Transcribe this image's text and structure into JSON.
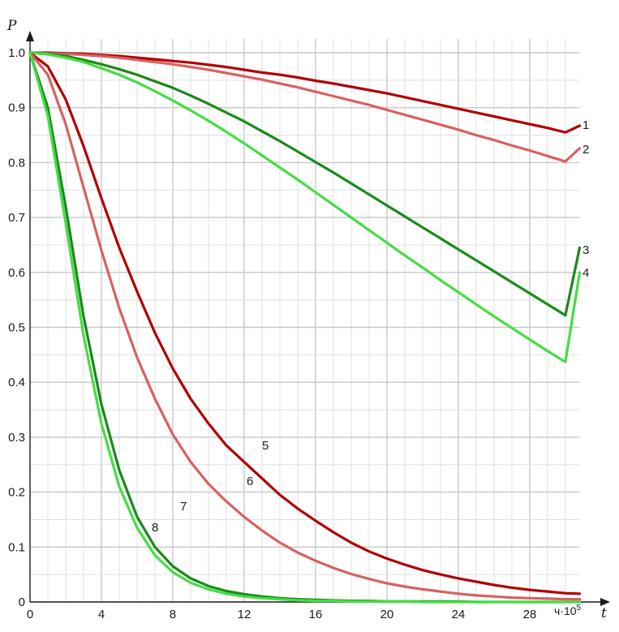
{
  "chart_data": {
    "type": "line",
    "xlabel": "t",
    "ylabel": "P",
    "x_unit": "ч·10",
    "x_unit_exp": "5",
    "xlim": [
      0,
      31
    ],
    "ylim": [
      0,
      1.0
    ],
    "x_ticks": [
      0,
      4,
      8,
      12,
      16,
      20,
      24,
      28
    ],
    "x_tick_labels": [
      "0",
      "4",
      "8",
      "12",
      "16",
      "20",
      "24",
      "28"
    ],
    "y_ticks": [
      0,
      0.1,
      0.2,
      0.3,
      0.4,
      0.5,
      0.6,
      0.7,
      0.8,
      0.9,
      1.0
    ],
    "y_tick_labels": [
      "0",
      "0.1",
      "0.2",
      "0.3",
      "0.4",
      "0.5",
      "0.6",
      "0.7",
      "0.8",
      "0.9",
      "1.0"
    ],
    "grid": true,
    "x": [
      0,
      1,
      2,
      3,
      4,
      5,
      6,
      7,
      8,
      9,
      10,
      11,
      12,
      13,
      14,
      15,
      16,
      17,
      18,
      19,
      20,
      21,
      22,
      23,
      24,
      25,
      26,
      27,
      28,
      29,
      30,
      30.8
    ],
    "series": [
      {
        "name": "1",
        "color": "#b00000",
        "values": [
          1.0,
          1.0,
          0.999,
          0.998,
          0.996,
          0.994,
          0.991,
          0.988,
          0.985,
          0.982,
          0.978,
          0.974,
          0.969,
          0.964,
          0.96,
          0.955,
          0.949,
          0.944,
          0.938,
          0.932,
          0.926,
          0.919,
          0.912,
          0.905,
          0.898,
          0.891,
          0.884,
          0.877,
          0.87,
          0.863,
          0.855,
          0.867
        ]
      },
      {
        "name": "2",
        "color": "#d96060",
        "values": [
          1.0,
          0.999,
          0.998,
          0.996,
          0.994,
          0.991,
          0.987,
          0.983,
          0.979,
          0.974,
          0.969,
          0.963,
          0.957,
          0.951,
          0.944,
          0.937,
          0.929,
          0.921,
          0.913,
          0.905,
          0.896,
          0.887,
          0.878,
          0.869,
          0.86,
          0.85,
          0.841,
          0.831,
          0.822,
          0.812,
          0.802,
          0.826
        ]
      },
      {
        "name": "3",
        "color": "#1a8a1a",
        "values": [
          1.0,
          0.998,
          0.994,
          0.987,
          0.979,
          0.97,
          0.96,
          0.948,
          0.936,
          0.922,
          0.907,
          0.891,
          0.875,
          0.857,
          0.839,
          0.82,
          0.801,
          0.782,
          0.762,
          0.742,
          0.722,
          0.702,
          0.682,
          0.662,
          0.642,
          0.622,
          0.602,
          0.582,
          0.562,
          0.542,
          0.522,
          0.645
        ]
      },
      {
        "name": "4",
        "color": "#44dd44",
        "values": [
          1.0,
          0.997,
          0.991,
          0.983,
          0.972,
          0.96,
          0.946,
          0.93,
          0.913,
          0.895,
          0.876,
          0.856,
          0.835,
          0.813,
          0.791,
          0.769,
          0.746,
          0.723,
          0.7,
          0.677,
          0.654,
          0.631,
          0.609,
          0.586,
          0.564,
          0.542,
          0.52,
          0.499,
          0.478,
          0.457,
          0.437,
          0.6
        ]
      },
      {
        "name": "5",
        "color": "#b00000",
        "values": [
          1.0,
          0.975,
          0.915,
          0.83,
          0.735,
          0.645,
          0.565,
          0.49,
          0.425,
          0.37,
          0.325,
          0.285,
          0.255,
          0.225,
          0.195,
          0.17,
          0.148,
          0.127,
          0.108,
          0.092,
          0.079,
          0.068,
          0.058,
          0.05,
          0.043,
          0.037,
          0.031,
          0.026,
          0.022,
          0.019,
          0.016,
          0.015
        ]
      },
      {
        "name": "6",
        "color": "#d96060",
        "values": [
          1.0,
          0.96,
          0.87,
          0.755,
          0.64,
          0.535,
          0.445,
          0.37,
          0.305,
          0.255,
          0.215,
          0.183,
          0.155,
          0.13,
          0.108,
          0.09,
          0.075,
          0.062,
          0.051,
          0.042,
          0.034,
          0.028,
          0.023,
          0.019,
          0.015,
          0.012,
          0.01,
          0.008,
          0.007,
          0.006,
          0.005,
          0.005
        ]
      },
      {
        "name": "7",
        "color": "#1a8a1a",
        "values": [
          1.0,
          0.9,
          0.72,
          0.52,
          0.36,
          0.24,
          0.155,
          0.1,
          0.065,
          0.043,
          0.029,
          0.02,
          0.014,
          0.01,
          0.007,
          0.005,
          0.004,
          0.003,
          0.002,
          0.002,
          0.001,
          0.001,
          0.001,
          0.001,
          0.001,
          0.0,
          0.0,
          0.0,
          0.0,
          0.0,
          0.0,
          0.0
        ]
      },
      {
        "name": "8",
        "color": "#44dd44",
        "values": [
          1.0,
          0.885,
          0.69,
          0.485,
          0.325,
          0.21,
          0.135,
          0.085,
          0.054,
          0.035,
          0.023,
          0.015,
          0.01,
          0.007,
          0.005,
          0.003,
          0.002,
          0.002,
          0.001,
          0.001,
          0.001,
          0.001,
          0.0,
          0.0,
          0.0,
          0.0,
          0.0,
          0.0,
          0.0,
          0.0,
          0.0,
          0.0
        ]
      }
    ]
  }
}
